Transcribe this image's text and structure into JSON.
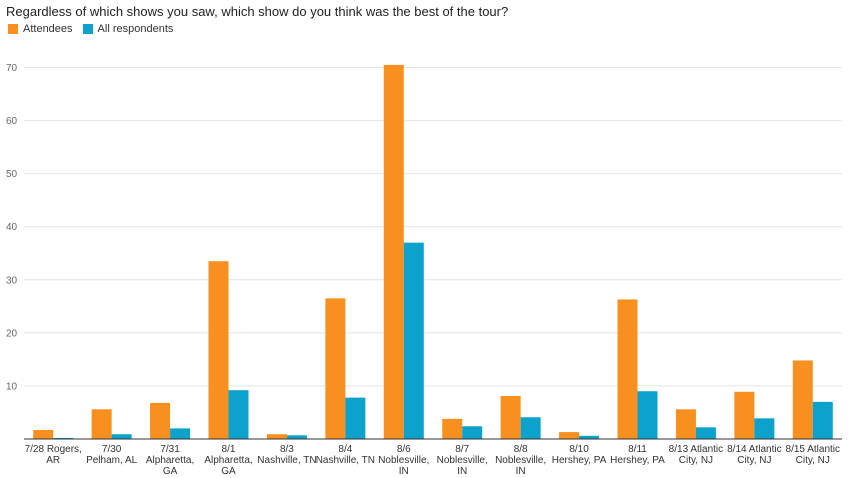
{
  "chart_data": {
    "type": "bar",
    "title": "Regardless of which shows you saw, which show do you think was the best of the tour?",
    "xlabel": "",
    "ylabel": "",
    "ylim": [
      0,
      75
    ],
    "yticks": [
      10,
      20,
      30,
      40,
      50,
      60,
      70
    ],
    "grid": true,
    "legend_position": "top-left",
    "categories": [
      [
        "7/28 Rogers,",
        "AR"
      ],
      [
        "7/30",
        "Pelham, AL"
      ],
      [
        "7/31",
        "Alpharetta,",
        "GA"
      ],
      [
        "8/1",
        "Alpharetta,",
        "GA"
      ],
      [
        "8/3",
        "Nashville, TN"
      ],
      [
        "8/4",
        "Nashville, TN"
      ],
      [
        "8/6",
        "Noblesville,",
        "IN"
      ],
      [
        "8/7",
        "Noblesville,",
        "IN"
      ],
      [
        "8/8",
        "Noblesville,",
        "IN"
      ],
      [
        "8/10",
        "Hershey, PA"
      ],
      [
        "8/11",
        "Hershey, PA"
      ],
      [
        "8/13 Atlantic",
        "City, NJ"
      ],
      [
        "8/14 Atlantic",
        "City, NJ"
      ],
      [
        "8/15 Atlantic",
        "City, NJ"
      ]
    ],
    "series": [
      {
        "name": "Attendees",
        "color": "#F7901E",
        "values": [
          1.7,
          5.6,
          6.8,
          33.5,
          0.9,
          26.5,
          70.5,
          3.8,
          8.1,
          1.3,
          26.3,
          5.6,
          8.9,
          14.8
        ]
      },
      {
        "name": "All respondents",
        "color": "#0DA2CC",
        "values": [
          0.2,
          0.9,
          2.0,
          9.2,
          0.7,
          7.8,
          37.0,
          2.4,
          4.1,
          0.6,
          9.0,
          2.2,
          3.9,
          7.0
        ]
      }
    ]
  }
}
